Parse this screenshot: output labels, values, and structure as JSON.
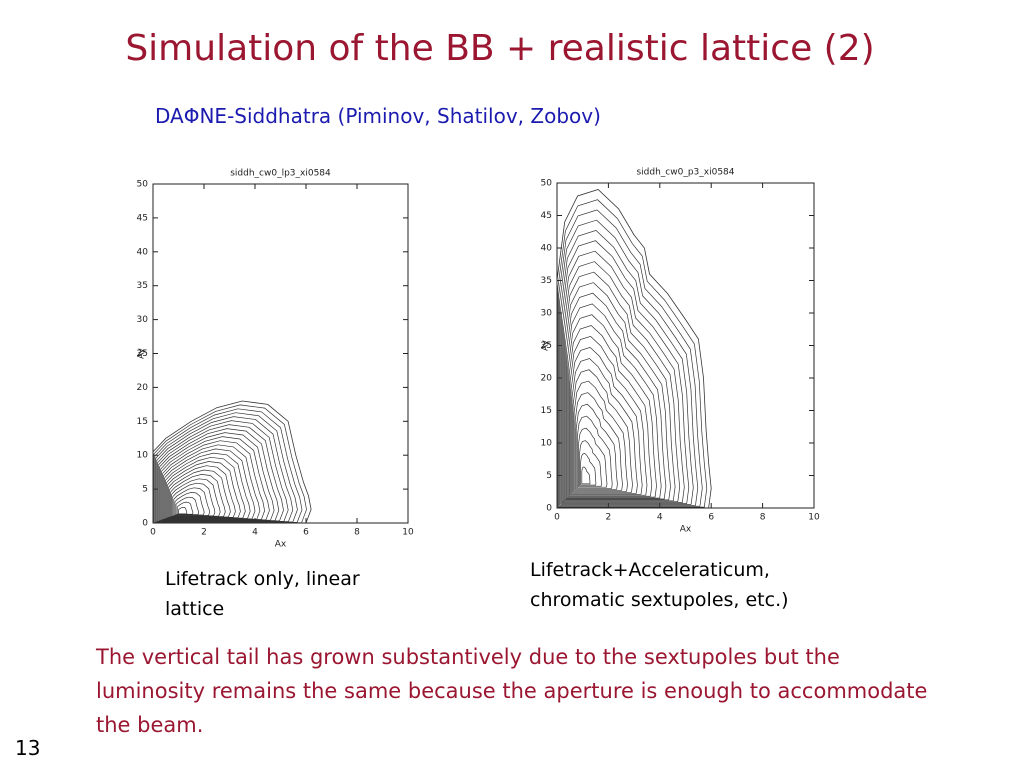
{
  "header": {
    "title": "Simulation of the BB + realistic lattice (2)",
    "subtitle": "DAΦNE-Siddhatra (Piminov, Shatilov, Zobov)"
  },
  "chart_data": [
    {
      "type": "contour",
      "title": "siddh_cw0_lp3_xi0584",
      "xlabel": "Ax",
      "ylabel": "Ay",
      "xlim": [
        0,
        10
      ],
      "ylim": [
        0,
        50
      ],
      "xticks": [
        0,
        2,
        4,
        6,
        8,
        10
      ],
      "yticks": [
        0,
        5,
        10,
        15,
        20,
        25,
        30,
        35,
        40,
        45,
        50
      ],
      "color": "#333333",
      "outer_contour": {
        "x": [
          0,
          0,
          0.5,
          1.5,
          2.5,
          3.5,
          4.5,
          5.3,
          5.6,
          5.9,
          6.1,
          6.2,
          6.0
        ],
        "y": [
          0,
          10.5,
          12.5,
          15,
          17,
          18,
          17.5,
          15,
          10,
          6,
          4,
          2,
          0
        ]
      }
    },
    {
      "type": "contour",
      "title": "siddh_cw0_p3_xi0584",
      "xlabel": "Ax",
      "ylabel": "Ay",
      "xlim": [
        0,
        10
      ],
      "ylim": [
        0,
        50
      ],
      "xticks": [
        0,
        2,
        4,
        6,
        8,
        10
      ],
      "yticks": [
        0,
        5,
        10,
        15,
        20,
        25,
        30,
        35,
        40,
        45,
        50
      ],
      "color": "#333333",
      "outer_contour": {
        "x": [
          0,
          0,
          0.3,
          0.8,
          1.6,
          2.4,
          3,
          3.4,
          3.6,
          4.3,
          5,
          5.5,
          5.7,
          5.8,
          5.9,
          6,
          5.9
        ],
        "y": [
          0,
          35,
          44,
          48,
          49,
          46,
          42,
          40,
          36,
          33,
          29,
          26,
          20,
          12,
          7,
          3,
          0
        ]
      }
    }
  ],
  "captions": [
    "Lifetrack only, linear lattice",
    "Lifetrack+Acceleraticum, chromatic sextupoles, etc.)"
  ],
  "note": "The vertical tail has grown substantively due to the sextupoles but the luminosity remains the same because the aperture is enough to accommodate the beam.",
  "page_number": "13"
}
